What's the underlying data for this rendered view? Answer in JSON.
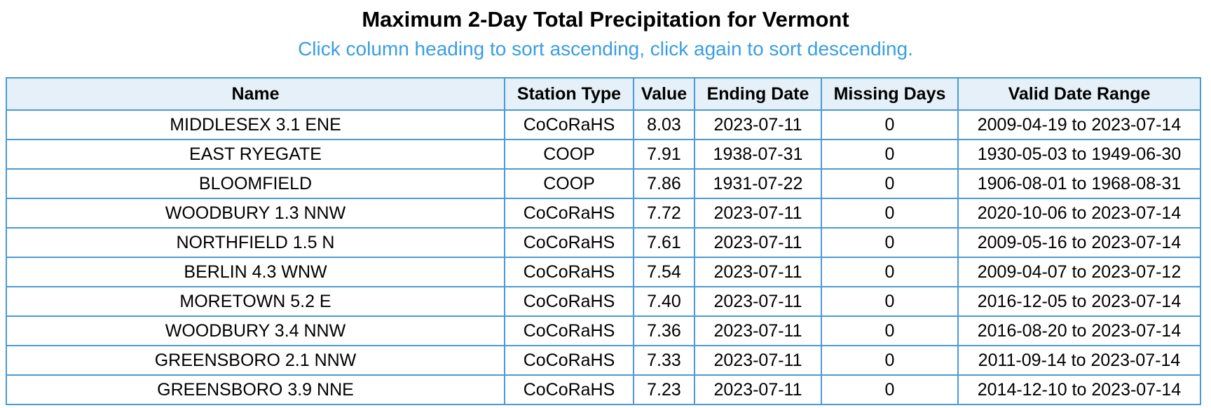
{
  "header": {
    "title": "Maximum 2-Day Total Precipitation for Vermont",
    "subtitle": "Click column heading to sort ascending, click again to sort descending."
  },
  "table": {
    "columns": [
      "Name",
      "Station Type",
      "Value",
      "Ending Date",
      "Missing Days",
      "Valid Date Range"
    ],
    "rows": [
      [
        "MIDDLESEX 3.1 ENE",
        "CoCoRaHS",
        "8.03",
        "2023-07-11",
        "0",
        "2009-04-19 to 2023-07-14"
      ],
      [
        "EAST RYEGATE",
        "COOP",
        "7.91",
        "1938-07-31",
        "0",
        "1930-05-03 to 1949-06-30"
      ],
      [
        "BLOOMFIELD",
        "COOP",
        "7.86",
        "1931-07-22",
        "0",
        "1906-08-01 to 1968-08-31"
      ],
      [
        "WOODBURY 1.3 NNW",
        "CoCoRaHS",
        "7.72",
        "2023-07-11",
        "0",
        "2020-10-06 to 2023-07-14"
      ],
      [
        "NORTHFIELD 1.5 N",
        "CoCoRaHS",
        "7.61",
        "2023-07-11",
        "0",
        "2009-05-16 to 2023-07-14"
      ],
      [
        "BERLIN 4.3 WNW",
        "CoCoRaHS",
        "7.54",
        "2023-07-11",
        "0",
        "2009-04-07 to 2023-07-12"
      ],
      [
        "MORETOWN 5.2 E",
        "CoCoRaHS",
        "7.40",
        "2023-07-11",
        "0",
        "2016-12-05 to 2023-07-14"
      ],
      [
        "WOODBURY 3.4 NNW",
        "CoCoRaHS",
        "7.36",
        "2023-07-11",
        "0",
        "2016-08-20 to 2023-07-14"
      ],
      [
        "GREENSBORO 2.1 NNW",
        "CoCoRaHS",
        "7.33",
        "2023-07-11",
        "0",
        "2011-09-14 to 2023-07-14"
      ],
      [
        "GREENSBORO 3.9 NNE",
        "CoCoRaHS",
        "7.23",
        "2023-07-11",
        "0",
        "2014-12-10 to 2023-07-14"
      ]
    ]
  }
}
